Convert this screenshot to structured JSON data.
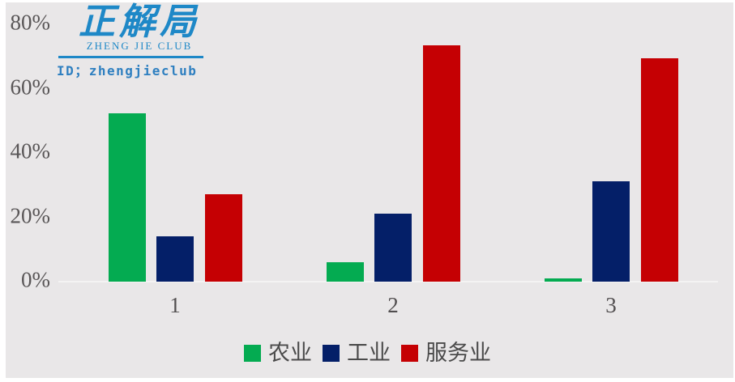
{
  "watermark": {
    "brand_cn": "正解局",
    "brand_en": "ZHENG JIE CLUB",
    "id_line": "ID；zhengjieclub",
    "color": "#1e88c7"
  },
  "chart_data": {
    "type": "bar",
    "categories": [
      "1",
      "2",
      "3"
    ],
    "series": [
      {
        "name": "农业",
        "color": "#04ab51",
        "values": [
          52,
          6,
          1
        ]
      },
      {
        "name": "工业",
        "color": "#041f68",
        "values": [
          14,
          21,
          31
        ]
      },
      {
        "name": "服务业",
        "color": "#c50003",
        "values": [
          27,
          73,
          69
        ]
      }
    ],
    "title": "",
    "xlabel": "",
    "ylabel": "",
    "ytick_labels": [
      "0%",
      "20%",
      "40%",
      "60%",
      "80%"
    ],
    "ytick_values": [
      0,
      20,
      40,
      60,
      80
    ],
    "ylim": [
      0,
      80
    ],
    "grid": false,
    "legend_position": "bottom",
    "background_color": "#e9e7e8"
  }
}
